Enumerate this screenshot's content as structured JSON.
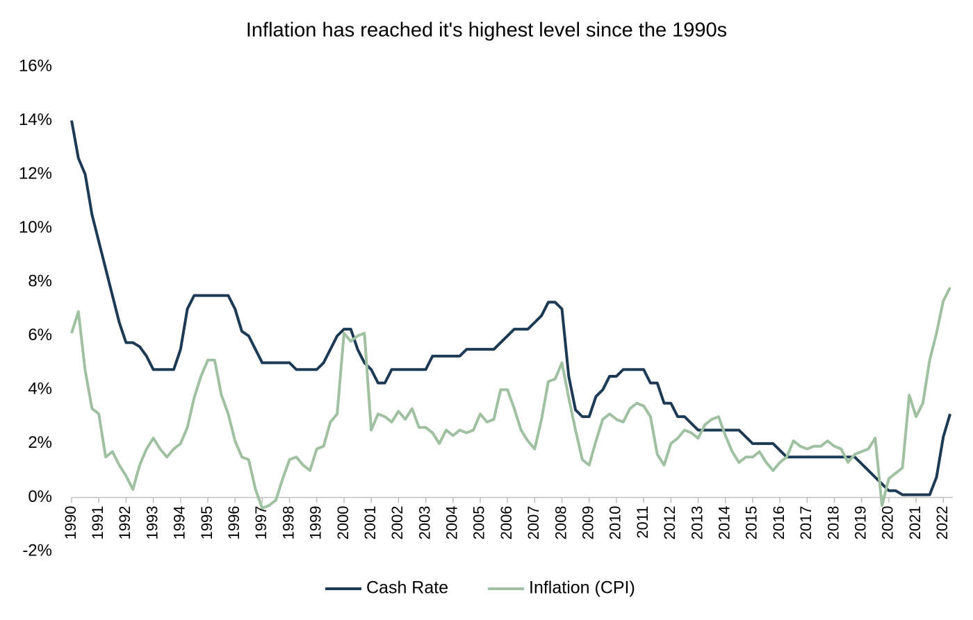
{
  "chart_data": {
    "type": "line",
    "title": "Inflation has reached it's highest level since the 1990s",
    "x": [
      1990,
      1990.25,
      1990.5,
      1990.75,
      1991,
      1991.25,
      1991.5,
      1991.75,
      1992,
      1992.25,
      1992.5,
      1992.75,
      1993,
      1993.25,
      1993.5,
      1993.75,
      1994,
      1994.25,
      1994.5,
      1994.75,
      1995,
      1995.25,
      1995.5,
      1995.75,
      1996,
      1996.25,
      1996.5,
      1996.75,
      1997,
      1997.25,
      1997.5,
      1997.75,
      1998,
      1998.25,
      1998.5,
      1998.75,
      1999,
      1999.25,
      1999.5,
      1999.75,
      2000,
      2000.25,
      2000.5,
      2000.75,
      2001,
      2001.25,
      2001.5,
      2001.75,
      2002,
      2002.25,
      2002.5,
      2002.75,
      2003,
      2003.25,
      2003.5,
      2003.75,
      2004,
      2004.25,
      2004.5,
      2004.75,
      2005,
      2005.25,
      2005.5,
      2005.75,
      2006,
      2006.25,
      2006.5,
      2006.75,
      2007,
      2007.25,
      2007.5,
      2007.75,
      2008,
      2008.25,
      2008.5,
      2008.75,
      2009,
      2009.25,
      2009.5,
      2009.75,
      2010,
      2010.25,
      2010.5,
      2010.75,
      2011,
      2011.25,
      2011.5,
      2011.75,
      2012,
      2012.25,
      2012.5,
      2012.75,
      2013,
      2013.25,
      2013.5,
      2013.75,
      2014,
      2014.25,
      2014.5,
      2014.75,
      2015,
      2015.25,
      2015.5,
      2015.75,
      2016,
      2016.25,
      2016.5,
      2016.75,
      2017,
      2017.25,
      2017.5,
      2017.75,
      2018,
      2018.25,
      2018.5,
      2018.75,
      2019,
      2019.25,
      2019.5,
      2019.75,
      2020,
      2020.25,
      2020.5,
      2020.75,
      2021,
      2021.25,
      2021.5,
      2021.75,
      2022,
      2022.25
    ],
    "series": [
      {
        "name": "Cash Rate",
        "color": "#1d3a55",
        "values": [
          14.0,
          12.6,
          12.0,
          10.5,
          9.5,
          8.5,
          7.5,
          6.5,
          5.75,
          5.75,
          5.6,
          5.25,
          4.75,
          4.75,
          4.75,
          4.75,
          5.5,
          7.0,
          7.5,
          7.5,
          7.5,
          7.5,
          7.5,
          7.5,
          7.0,
          6.17,
          6.0,
          5.5,
          5.0,
          5.0,
          5.0,
          5.0,
          5.0,
          4.75,
          4.75,
          4.75,
          4.75,
          5.0,
          5.5,
          6.0,
          6.25,
          6.25,
          5.5,
          5.0,
          4.75,
          4.25,
          4.25,
          4.75,
          4.75,
          4.75,
          4.75,
          4.75,
          4.75,
          5.25,
          5.25,
          5.25,
          5.25,
          5.25,
          5.5,
          5.5,
          5.5,
          5.5,
          5.5,
          5.75,
          6.0,
          6.25,
          6.25,
          6.25,
          6.5,
          6.75,
          7.25,
          7.25,
          7.0,
          4.5,
          3.25,
          3.0,
          3.0,
          3.75,
          4.0,
          4.5,
          4.5,
          4.75,
          4.75,
          4.75,
          4.75,
          4.25,
          4.25,
          3.5,
          3.5,
          3.0,
          3.0,
          2.75,
          2.5,
          2.5,
          2.5,
          2.5,
          2.5,
          2.5,
          2.5,
          2.25,
          2.0,
          2.0,
          2.0,
          2.0,
          1.75,
          1.5,
          1.5,
          1.5,
          1.5,
          1.5,
          1.5,
          1.5,
          1.5,
          1.5,
          1.5,
          1.5,
          1.25,
          1.0,
          0.75,
          0.5,
          0.25,
          0.25,
          0.1,
          0.1,
          0.1,
          0.1,
          0.1,
          0.75,
          2.25,
          3.1
        ]
      },
      {
        "name": "Inflation (CPI)",
        "color": "#9fc0a1",
        "values": [
          6.1,
          6.9,
          4.7,
          3.3,
          3.1,
          1.5,
          1.7,
          1.2,
          0.8,
          0.3,
          1.2,
          1.8,
          2.2,
          1.8,
          1.5,
          1.8,
          2.0,
          2.6,
          3.7,
          4.5,
          5.1,
          5.1,
          3.8,
          3.1,
          2.1,
          1.5,
          1.4,
          0.3,
          -0.4,
          -0.3,
          -0.1,
          0.7,
          1.4,
          1.5,
          1.2,
          1.0,
          1.8,
          1.9,
          2.8,
          3.1,
          6.1,
          5.8,
          6.0,
          6.1,
          2.5,
          3.1,
          3.0,
          2.8,
          3.2,
          2.9,
          3.3,
          2.6,
          2.6,
          2.4,
          2.0,
          2.5,
          2.3,
          2.5,
          2.4,
          2.5,
          3.1,
          2.8,
          2.9,
          4.0,
          4.0,
          3.3,
          2.5,
          2.1,
          1.8,
          2.9,
          4.3,
          4.4,
          5.0,
          3.7,
          2.5,
          1.4,
          1.2,
          2.1,
          2.9,
          3.1,
          2.9,
          2.8,
          3.3,
          3.5,
          3.4,
          3.0,
          1.6,
          1.2,
          2.0,
          2.2,
          2.5,
          2.4,
          2.2,
          2.7,
          2.9,
          3.0,
          2.3,
          1.7,
          1.3,
          1.5,
          1.5,
          1.7,
          1.3,
          1.0,
          1.3,
          1.5,
          2.1,
          1.9,
          1.8,
          1.9,
          1.9,
          2.1,
          1.9,
          1.8,
          1.3,
          1.6,
          1.7,
          1.8,
          2.2,
          -0.3,
          0.7,
          0.9,
          1.1,
          3.8,
          3.0,
          3.5,
          5.1,
          6.1,
          7.3,
          7.8
        ]
      }
    ],
    "xlim": [
      1990,
      2022.35
    ],
    "xticks": [
      1990,
      1991,
      1992,
      1993,
      1994,
      1995,
      1996,
      1997,
      1998,
      1999,
      2000,
      2001,
      2002,
      2003,
      2004,
      2005,
      2006,
      2007,
      2008,
      2009,
      2010,
      2011,
      2012,
      2013,
      2014,
      2015,
      2016,
      2017,
      2018,
      2019,
      2020,
      2021,
      2022
    ],
    "ylim": [
      -2,
      16
    ],
    "yticks": [
      {
        "value": -2,
        "label": "-2%"
      },
      {
        "value": 0,
        "label": "0%"
      },
      {
        "value": 2,
        "label": "2%"
      },
      {
        "value": 4,
        "label": "4%"
      },
      {
        "value": 6,
        "label": "6%"
      },
      {
        "value": 8,
        "label": "8%"
      },
      {
        "value": 10,
        "label": "10%"
      },
      {
        "value": 12,
        "label": "12%"
      },
      {
        "value": 14,
        "label": "14%"
      },
      {
        "value": 16,
        "label": "16%"
      }
    ],
    "grid": false,
    "legend": "bottom"
  }
}
